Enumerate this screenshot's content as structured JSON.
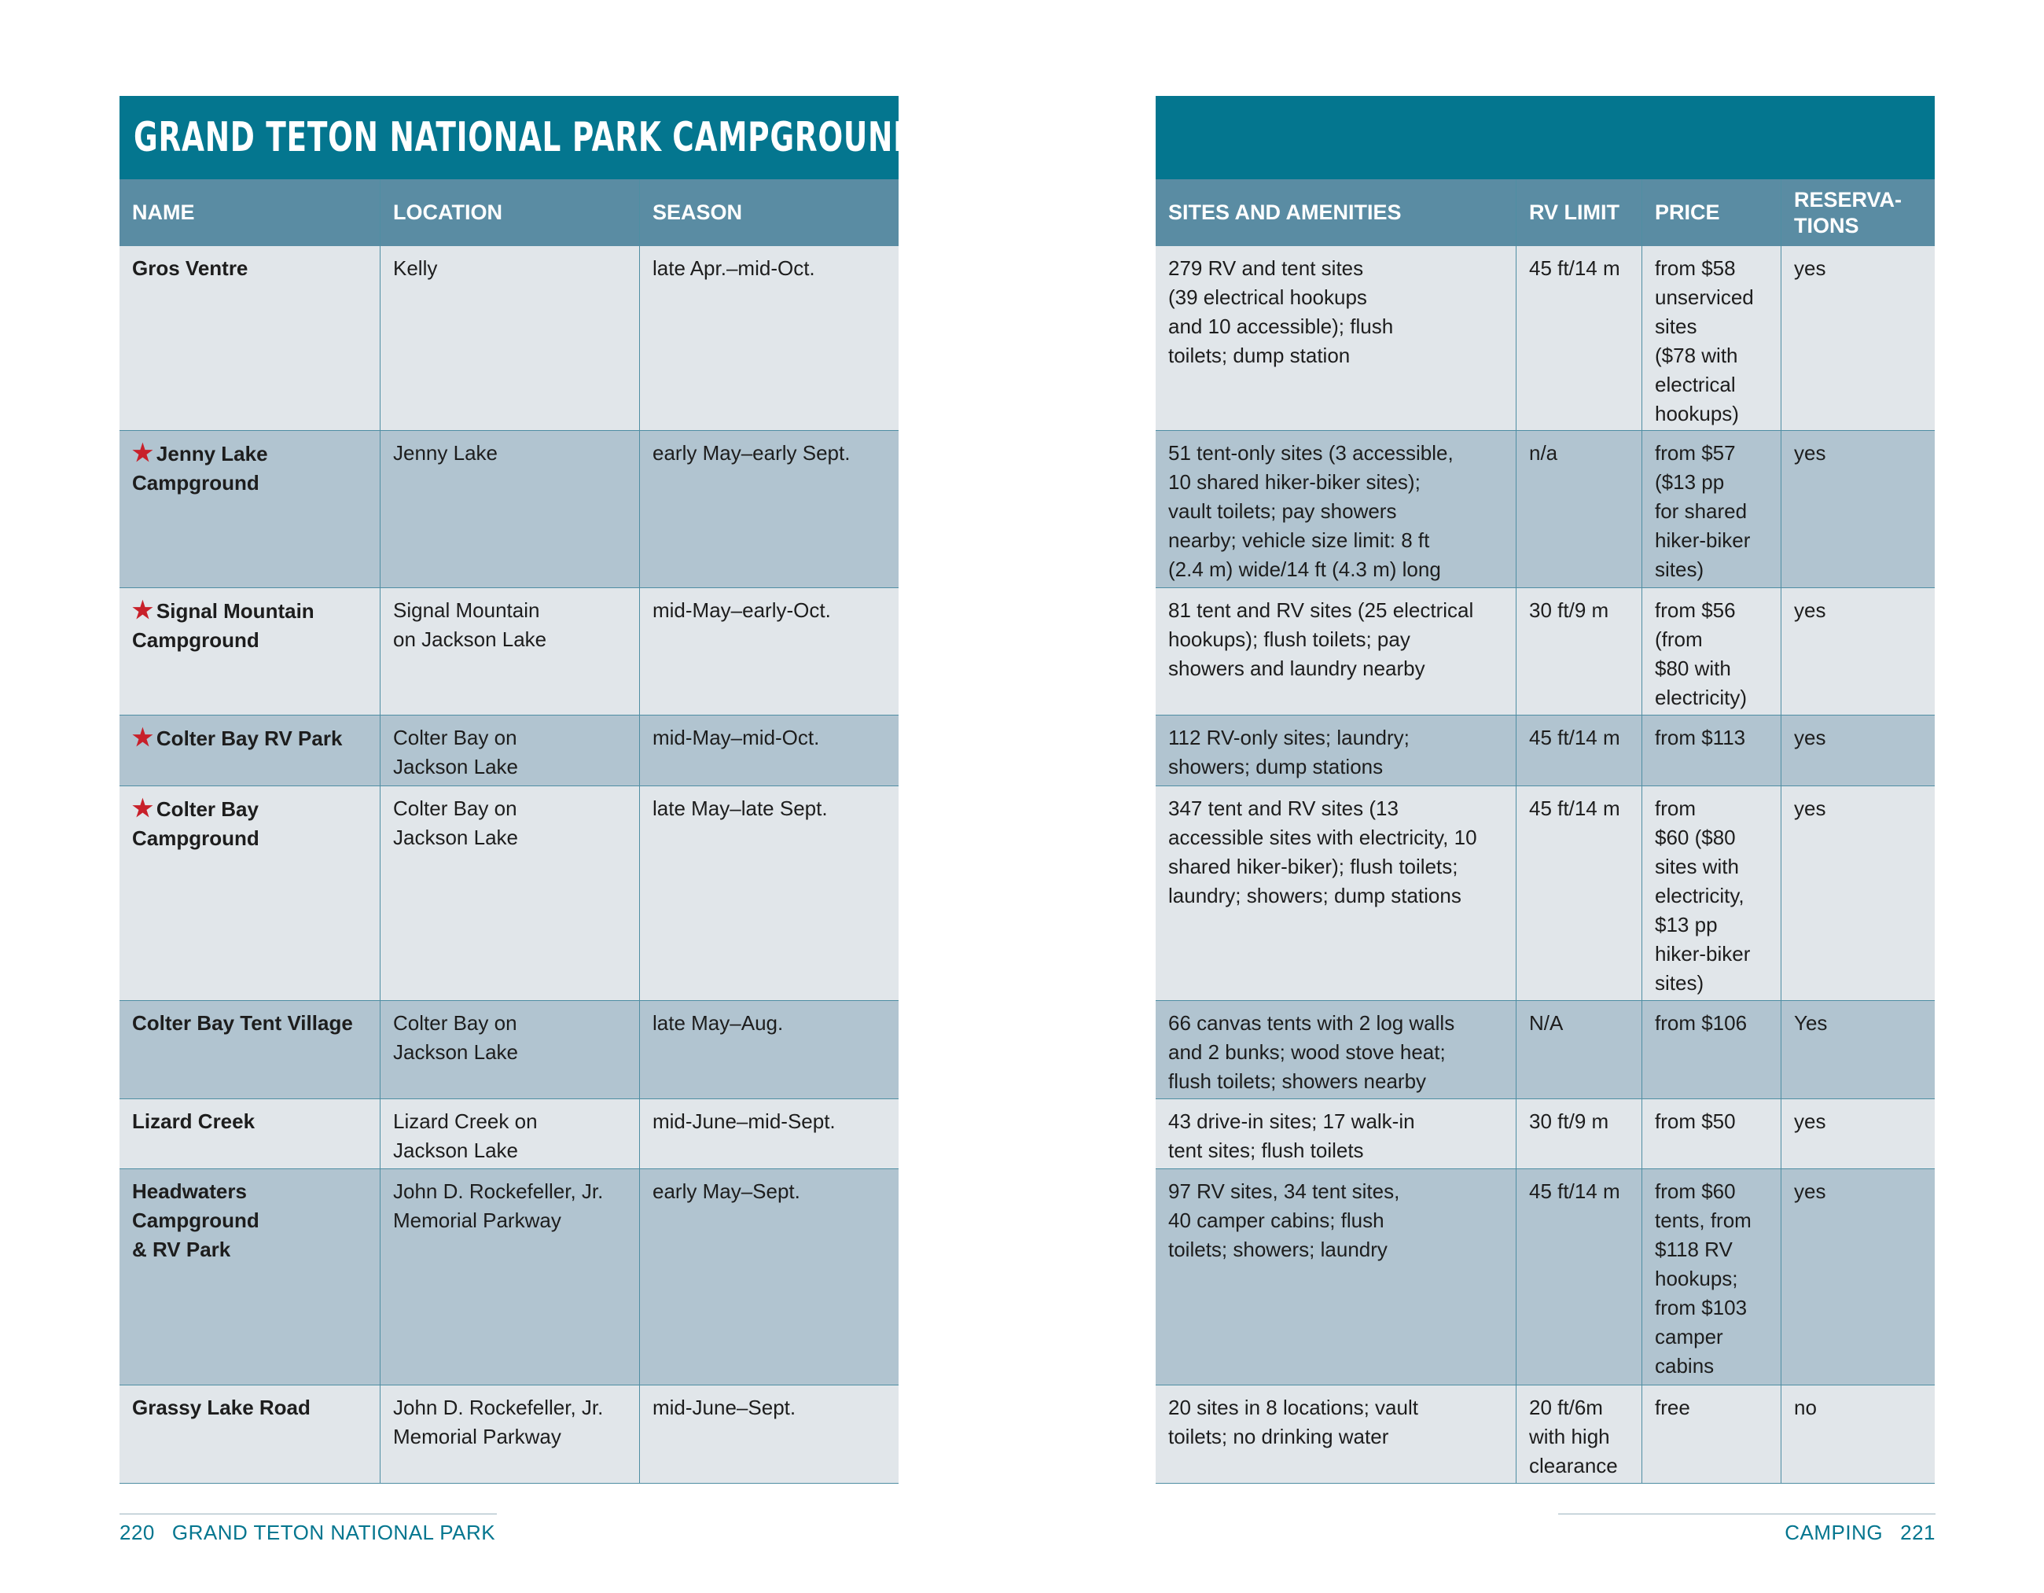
{
  "title": "GRAND TETON NATIONAL PARK CAMPGROUNDS",
  "headers_left": [
    "NAME",
    "LOCATION",
    "SEASON"
  ],
  "headers_right": [
    "SITES AND AMENITIES",
    "RV LIMIT",
    "PRICE",
    "RESERVA-\nTIONS"
  ],
  "colors": {
    "title_bg": "#04768f",
    "header_bg": "#5a8ca3",
    "row_light": "#e1e6ea",
    "row_dark": "#b1c4d0",
    "star": "#c8202a"
  },
  "star_icon": "red-star-icon",
  "rows": [
    {
      "starred": false,
      "name": "Gros Ventre",
      "location": "Kelly",
      "season": "late Apr.–mid-Oct.",
      "sites": "279 RV and tent sites\n(39 electrical hookups\nand 10 accessible); flush\ntoilets; dump station",
      "rv_limit": "45 ft/14 m",
      "price": "from $58\nunserviced\nsites\n($78 with\nelectrical\nhookups)",
      "reservations": "yes"
    },
    {
      "starred": true,
      "name": "Jenny Lake\nCampground",
      "location": "Jenny Lake",
      "season": "early May–early Sept.",
      "sites": "51 tent-only sites (3 accessible,\n10 shared hiker-biker sites);\nvault toilets; pay showers\nnearby; vehicle size limit: 8 ft\n(2.4 m) wide/14 ft (4.3 m) long",
      "rv_limit": "n/a",
      "price": "from $57\n($13 pp\nfor shared\nhiker-biker\nsites)",
      "reservations": "yes"
    },
    {
      "starred": true,
      "name": "Signal Mountain\nCampground",
      "location": "Signal Mountain\non Jackson Lake",
      "season": "mid-May–early-Oct.",
      "sites": "81 tent and RV sites (25 electrical\nhookups); flush toilets; pay\nshowers and laundry nearby",
      "rv_limit": "30 ft/9 m",
      "price": "from $56\n(from\n$80 with\nelectricity)",
      "reservations": "yes"
    },
    {
      "starred": true,
      "name": "Colter Bay RV Park",
      "location": "Colter Bay on\nJackson Lake",
      "season": "mid-May–mid-Oct.",
      "sites": "112 RV-only sites; laundry;\nshowers; dump stations",
      "rv_limit": "45 ft/14 m",
      "price": "from $113",
      "reservations": "yes"
    },
    {
      "starred": true,
      "name": "Colter Bay\nCampground",
      "location": "Colter Bay on\nJackson Lake",
      "season": "late May–late Sept.",
      "sites": "347 tent and RV sites (13\naccessible sites with electricity, 10\nshared hiker-biker); flush toilets;\nlaundry; showers; dump stations",
      "rv_limit": "45 ft/14 m",
      "price": "from\n$60 ($80\nsites with\nelectricity,\n$13 pp\nhiker-biker\nsites)",
      "reservations": "yes"
    },
    {
      "starred": false,
      "name": "Colter Bay Tent Village",
      "location": "Colter Bay on\nJackson Lake",
      "season": "late May–Aug.",
      "sites": "66 canvas tents with 2 log walls\nand 2 bunks; wood stove heat;\nflush toilets; showers nearby",
      "rv_limit": "N/A",
      "price": "from $106",
      "reservations": "Yes"
    },
    {
      "starred": false,
      "name": "Lizard Creek",
      "location": "Lizard Creek on\nJackson Lake",
      "season": "mid-June–mid-Sept.",
      "sites": "43 drive-in sites; 17 walk-in\ntent sites; flush toilets",
      "rv_limit": "30 ft/9 m",
      "price": "from $50",
      "reservations": "yes"
    },
    {
      "starred": false,
      "name": "Headwaters\nCampground\n& RV Park",
      "location": "John D. Rockefeller, Jr.\nMemorial Parkway",
      "season": "early May–Sept.",
      "sites": "97 RV sites, 34 tent sites,\n40 camper cabins; flush\ntoilets; showers; laundry",
      "rv_limit": "45 ft/14 m",
      "price": "from $60\ntents, from\n$118 RV\nhookups;\nfrom $103\ncamper\ncabins",
      "reservations": "yes"
    },
    {
      "starred": false,
      "name": "Grassy Lake Road",
      "location": "John D. Rockefeller, Jr.\nMemorial Parkway",
      "season": "mid-June–Sept.",
      "sites": "20 sites in 8 locations; vault\ntoilets; no drinking water",
      "rv_limit": "20 ft/6m\nwith high\nclearance",
      "price": "free",
      "reservations": "no"
    }
  ],
  "footer_left": {
    "page": "220",
    "text": "GRAND TETON NATIONAL PARK"
  },
  "footer_right": {
    "text": "CAMPING",
    "page": "221"
  }
}
